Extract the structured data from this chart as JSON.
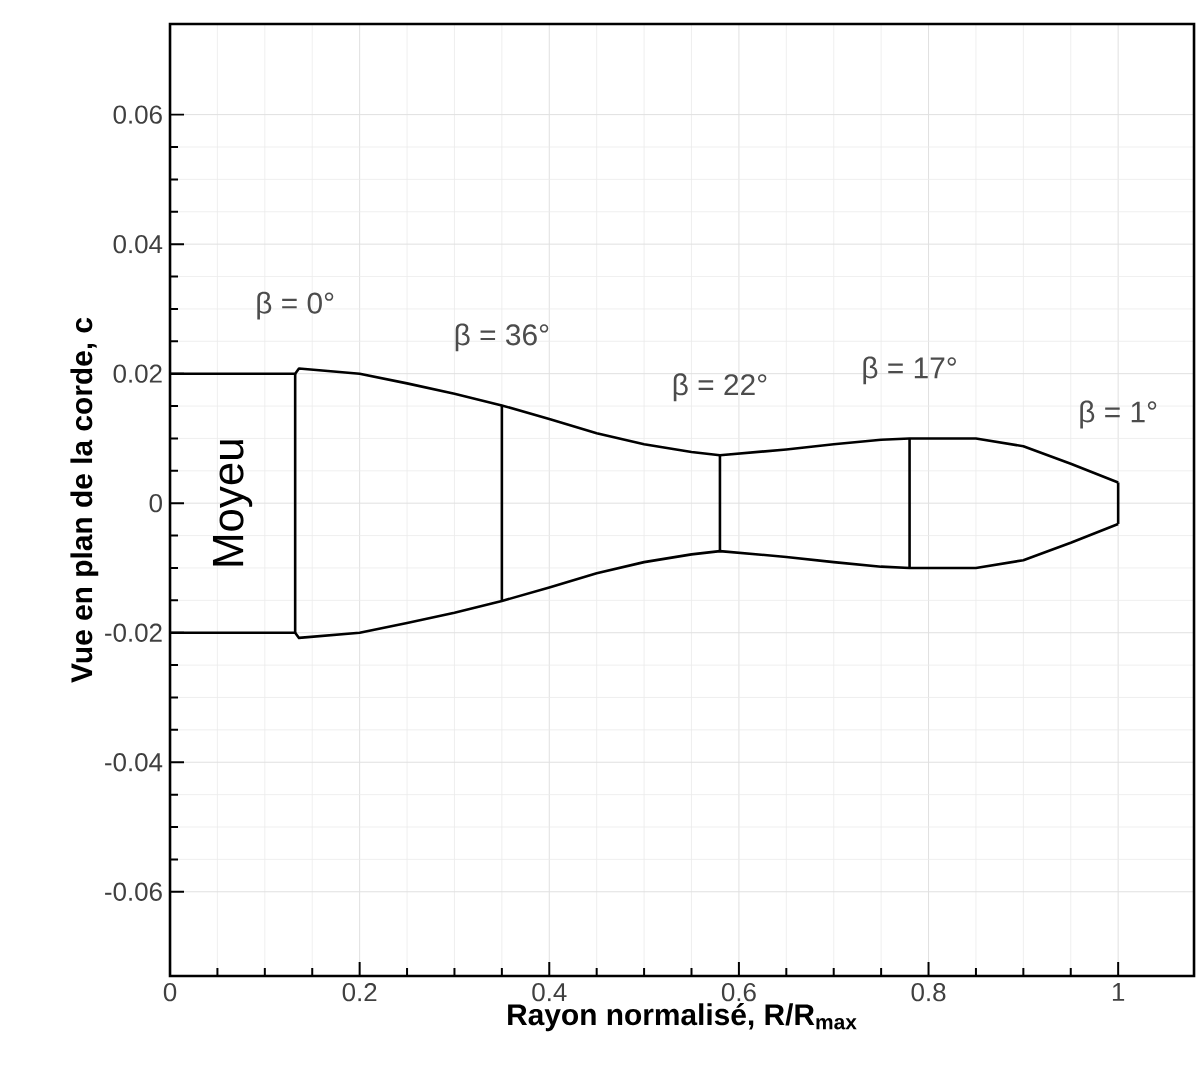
{
  "chart_data": {
    "type": "line",
    "xlabel": "Rayon normalisé, R/R$_{max}$",
    "ylabel": "Vue en plan de la corde, c",
    "xlim": [
      0,
      1.08
    ],
    "ylim": [
      -0.073,
      0.074
    ],
    "xticks": [
      0,
      0.2,
      0.4,
      0.6,
      0.8,
      1
    ],
    "yticks": [
      -0.06,
      -0.04,
      -0.02,
      0,
      0.02,
      0.04,
      0.06
    ],
    "grid": true,
    "line_style": "solid",
    "marker": "none",
    "series": [
      {
        "color": "#000000",
        "x": [
          0,
          0.132,
          0.136,
          0.2,
          0.25,
          0.3,
          0.35,
          0.4,
          0.45,
          0.5,
          0.55,
          0.58,
          0.65,
          0.7,
          0.75,
          0.78,
          0.85,
          0.9,
          0.95,
          1.0
        ],
        "values": [
          0.02,
          0.02,
          0.0208,
          0.02,
          0.0185,
          0.0169,
          0.0151,
          0.013,
          0.0108,
          0.0091,
          0.0079,
          0.0074,
          0.0083,
          0.0091,
          0.0098,
          0.01,
          0.01,
          0.0088,
          0.0061,
          0.0032
        ]
      },
      {
        "color": "#000000",
        "x": [
          0,
          0.132,
          0.136,
          0.2,
          0.25,
          0.3,
          0.35,
          0.4,
          0.45,
          0.5,
          0.55,
          0.58,
          0.65,
          0.7,
          0.75,
          0.78,
          0.85,
          0.9,
          0.95,
          1.0
        ],
        "values": [
          -0.02,
          -0.02,
          -0.0208,
          -0.02,
          -0.0185,
          -0.0169,
          -0.0151,
          -0.013,
          -0.0108,
          -0.0091,
          -0.0079,
          -0.0074,
          -0.0083,
          -0.0091,
          -0.0098,
          -0.01,
          -0.01,
          -0.0088,
          -0.0061,
          -0.0032
        ]
      },
      {
        "color": "#000000",
        "x": [
          0.132,
          0.132
        ],
        "values": [
          -0.02,
          0.02
        ]
      },
      {
        "color": "#000000",
        "x": [
          0.35,
          0.35
        ],
        "values": [
          -0.0151,
          0.0151
        ]
      },
      {
        "color": "#000000",
        "x": [
          0.58,
          0.58
        ],
        "values": [
          -0.0074,
          0.0074
        ]
      },
      {
        "color": "#000000",
        "x": [
          0.78,
          0.78
        ],
        "values": [
          -0.01,
          0.01
        ]
      },
      {
        "color": "#000000",
        "x": [
          1.0,
          1.0
        ],
        "values": [
          -0.0032,
          0.0032
        ]
      }
    ],
    "annotations": [
      "β = 0°",
      "β = 36°",
      "β = 22°",
      "β = 17°",
      "β = 1°",
      "Moyeu"
    ]
  }
}
